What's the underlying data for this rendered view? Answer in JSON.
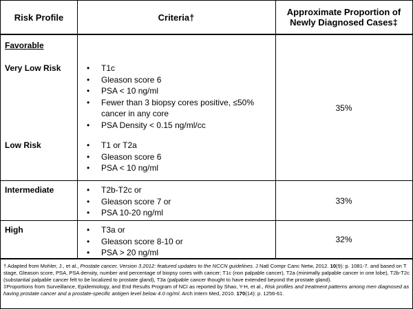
{
  "header": {
    "risk": "Risk Profile",
    "criteria": "Criteria†",
    "proportion": "Approximate Proportion of Newly Diagnosed Cases‡"
  },
  "table": {
    "sections": [
      {
        "heading": "Favorable",
        "entries": [
          {
            "label": "Very Low Risk",
            "criteria": [
              "T1c",
              "Gleason score 6",
              "PSA < 10 ng/ml",
              "Fewer than 3 biopsy cores positive, ≤50% cancer in any core",
              "PSA Density < 0.15 ng/ml/cc"
            ]
          },
          {
            "label": "Low Risk",
            "criteria": [
              "T1 or T2a",
              "Gleason score 6",
              "PSA < 10 ng/ml"
            ]
          }
        ],
        "proportion": "35%"
      },
      {
        "entries": [
          {
            "label": "Intermediate",
            "criteria": [
              "T2b-T2c or",
              "Gleason score 7 or",
              "PSA 10-20 ng/ml"
            ]
          }
        ],
        "proportion": "33%"
      },
      {
        "entries": [
          {
            "label": "High",
            "criteria": [
              "T3a or",
              "Gleason score 8-10 or",
              "PSA > 20 ng/ml"
            ]
          }
        ],
        "proportion": "32%"
      }
    ]
  },
  "footnotes": [
    [
      {
        "text": "† Adapted  from Mohler, J., et al., "
      },
      {
        "text": "Prostate cancer, Version 3.2012: featured updates to the NCCN guidelines",
        "style": "italic"
      },
      {
        "text": ". J Natl Compr Canc Netw, 2012. "
      },
      {
        "text": "10",
        "style": "bold"
      },
      {
        "text": "(9): p. 1081-7.  and based on T stage, Gleason score, PSA, PSA density, number and percentage of biopsy cores with cancer; T1c (non palpable cancer), T2a (minimally palpable cancer in one lobe), T2b-T2c (substantial palpable cancer felt to be localized to prostate gland), T3a (palpable cancer thought to have extended beyond the prostate gland)."
      }
    ],
    [
      {
        "text": "‡Proportions from Surveillance, Epidemiology, and End Results Program of NCI as reported by Shao, Y-H, et al., "
      },
      {
        "text": "Risk profiles and treatment patterns among men diagnosed as having prostate cancer and a prostate-specific antigen level below 4.0 ng/ml",
        "style": "italic"
      },
      {
        "text": ". Arch Intern Med, 2010. "
      },
      {
        "text": "170",
        "style": "bold"
      },
      {
        "text": "(14): p. 1256-61."
      }
    ]
  ]
}
